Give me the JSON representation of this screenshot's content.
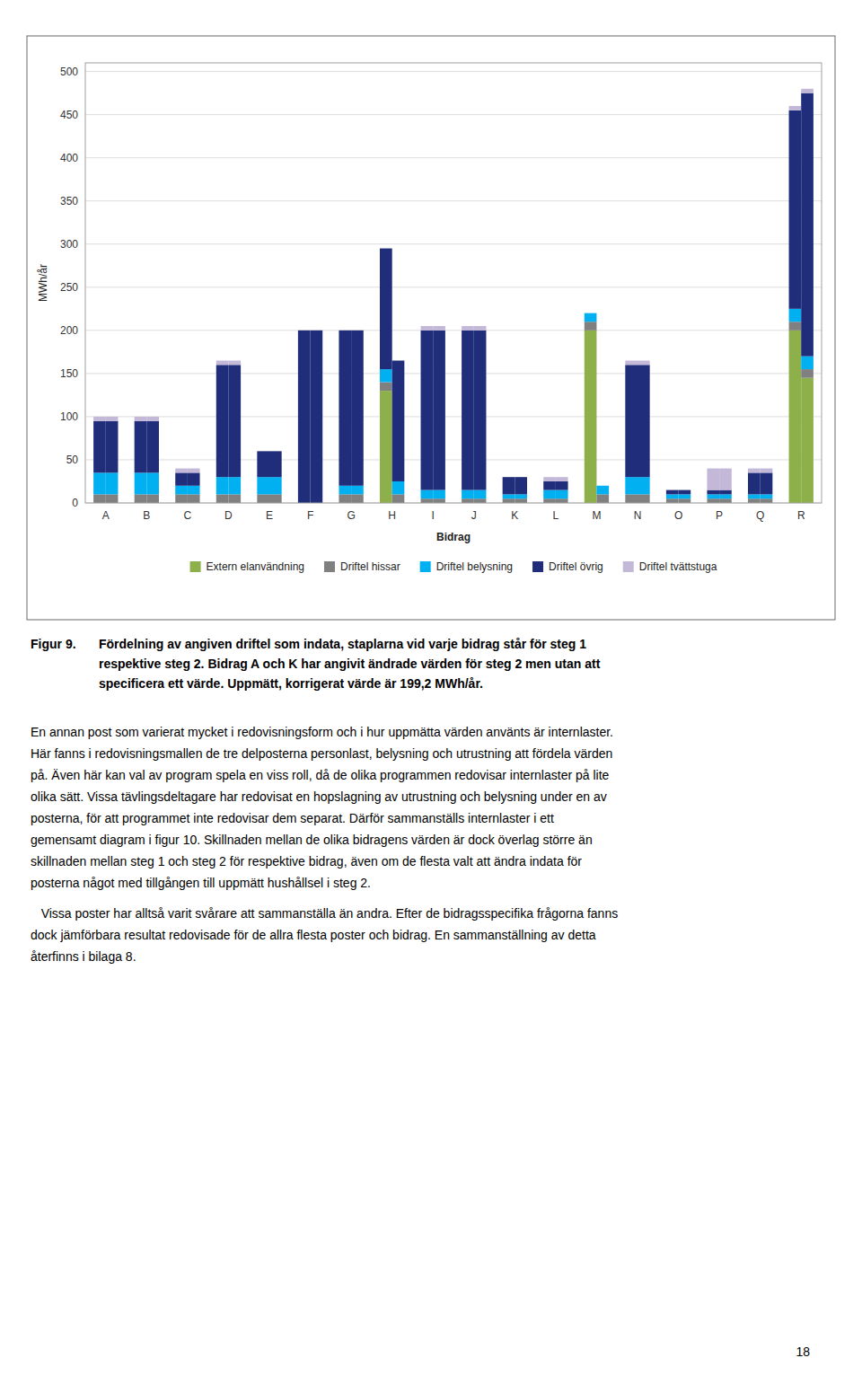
{
  "chart_data": {
    "type": "bar",
    "stacked": true,
    "grid": true,
    "legend": "bottom",
    "x_label": "Bidrag",
    "y_label": "MWh/år",
    "categories": [
      "A",
      "B",
      "C",
      "D",
      "E",
      "F",
      "G",
      "H",
      "I",
      "J",
      "K",
      "L",
      "M",
      "N",
      "O",
      "P",
      "Q",
      "R"
    ],
    "ylim": [
      0,
      510
    ],
    "yticks": [
      0,
      50,
      100,
      150,
      200,
      250,
      300,
      350,
      400,
      450,
      500
    ],
    "series": [
      {
        "name": "Extern elanvändning",
        "color": "#8db04a",
        "values": [
          [
            0,
            0
          ],
          [
            0,
            0
          ],
          [
            0,
            0
          ],
          [
            0,
            0
          ],
          [
            0,
            0
          ],
          [
            0,
            0
          ],
          [
            0,
            0
          ],
          [
            130,
            0
          ],
          [
            0,
            0
          ],
          [
            0,
            0
          ],
          [
            0,
            0
          ],
          [
            0,
            0
          ],
          [
            200,
            0
          ],
          [
            0,
            0
          ],
          [
            0,
            0
          ],
          [
            0,
            0
          ],
          [
            0,
            0
          ],
          [
            200,
            145
          ]
        ]
      },
      {
        "name": "Driftel hissar",
        "color": "#808080",
        "values": [
          [
            10,
            10
          ],
          [
            10,
            10
          ],
          [
            10,
            10
          ],
          [
            10,
            10
          ],
          [
            10,
            10
          ],
          [
            0,
            0
          ],
          [
            10,
            10
          ],
          [
            10,
            10
          ],
          [
            5,
            5
          ],
          [
            5,
            5
          ],
          [
            5,
            5
          ],
          [
            5,
            5
          ],
          [
            10,
            10
          ],
          [
            10,
            10
          ],
          [
            5,
            5
          ],
          [
            5,
            5
          ],
          [
            5,
            5
          ],
          [
            10,
            10
          ]
        ]
      },
      {
        "name": "Driftel belysning",
        "color": "#00b0f0",
        "values": [
          [
            25,
            25
          ],
          [
            25,
            25
          ],
          [
            10,
            10
          ],
          [
            20,
            20
          ],
          [
            20,
            20
          ],
          [
            0,
            0
          ],
          [
            10,
            10
          ],
          [
            15,
            15
          ],
          [
            10,
            10
          ],
          [
            10,
            10
          ],
          [
            5,
            5
          ],
          [
            10,
            10
          ],
          [
            10,
            10
          ],
          [
            20,
            20
          ],
          [
            5,
            5
          ],
          [
            5,
            5
          ],
          [
            5,
            5
          ],
          [
            15,
            15
          ]
        ]
      },
      {
        "name": "Driftel övrig",
        "color": "#1f2d7b",
        "values": [
          [
            60,
            60
          ],
          [
            60,
            60
          ],
          [
            15,
            15
          ],
          [
            130,
            130
          ],
          [
            30,
            30
          ],
          [
            200,
            200
          ],
          [
            180,
            180
          ],
          [
            140,
            140
          ],
          [
            185,
            185
          ],
          [
            185,
            185
          ],
          [
            20,
            20
          ],
          [
            10,
            10
          ],
          [
            0,
            0
          ],
          [
            130,
            130
          ],
          [
            5,
            5
          ],
          [
            5,
            5
          ],
          [
            25,
            25
          ],
          [
            230,
            305
          ]
        ]
      },
      {
        "name": "Driftel tvättstuga",
        "color": "#c4b8d9",
        "values": [
          [
            5,
            5
          ],
          [
            5,
            5
          ],
          [
            5,
            5
          ],
          [
            5,
            5
          ],
          [
            0,
            0
          ],
          [
            0,
            0
          ],
          [
            0,
            0
          ],
          [
            0,
            0
          ],
          [
            5,
            5
          ],
          [
            5,
            5
          ],
          [
            0,
            0
          ],
          [
            5,
            5
          ],
          [
            0,
            0
          ],
          [
            5,
            5
          ],
          [
            0,
            0
          ],
          [
            25,
            25
          ],
          [
            5,
            5
          ],
          [
            5,
            5
          ]
        ]
      }
    ]
  },
  "caption_label": "Figur 9.",
  "caption_lines": [
    "Fördelning av angiven driftel som indata, staplarna vid varje bidrag står för steg 1",
    "respektive steg 2. Bidrag A och K har angivit ändrade värden för steg 2 men utan att",
    "specificera ett värde. Uppmätt, korrigerat värde är 199,2 MWh/år."
  ],
  "body_text": [
    [
      "En annan post som varierat mycket i redovisningsform och i hur uppmätta värden använts är internlaster.",
      "Här fanns i redovisningsmallen de tre delposterna personlast, belysning och utrustning att fördela värden",
      "på. Även här kan val av program spela en viss roll, då de olika programmen redovisar internlaster på lite",
      "olika sätt. Vissa tävlingsdeltagare har redovisat en hopslagning av utrustning och belysning under en av",
      "posterna, för att programmet inte redovisar dem separat. Därför sammanställs internlaster i ett",
      "gemensamt diagram i figur 10. Skillnaden mellan de olika bidragens värden är dock överlag större än",
      "skillnaden mellan steg 1 och steg 2 för respektive bidrag, även om de flesta valt att ändra indata för",
      "posterna något med tillgången till uppmätt hushållsel i steg 2."
    ],
    [
      "   Vissa poster har alltså varit svårare att sammanställa än andra. Efter de bidragsspecifika frågorna fanns",
      "dock jämförbara resultat redovisade för de allra flesta poster och bidrag. En sammanställning av detta",
      "återfinns i bilaga 8."
    ]
  ],
  "page_number": "18"
}
